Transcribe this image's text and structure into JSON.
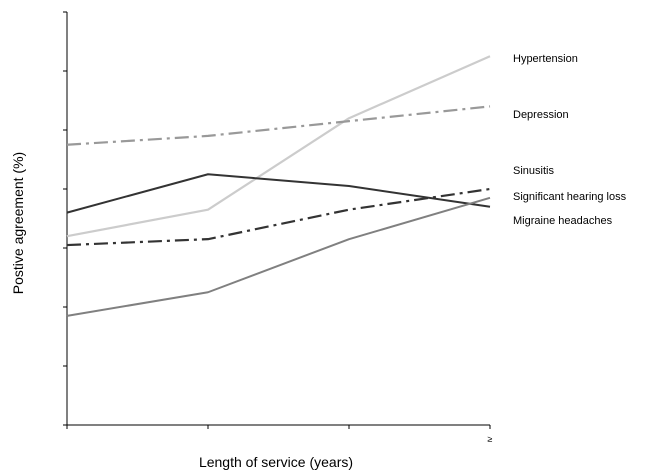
{
  "chart_data": {
    "type": "line",
    "title": "",
    "xlabel": "Length of service (years)",
    "ylabel": "Postive agreement (%)",
    "x": [
      0,
      1,
      2,
      3
    ],
    "x_tick_labels": [
      "",
      "",
      "",
      "≥"
    ],
    "ylim": [
      0,
      70
    ],
    "y_tick_count": 8,
    "grid": false,
    "legend": "right, inline labels",
    "series": [
      {
        "name": "Hypertension",
        "values": [
          32,
          36.5,
          52,
          62.5
        ],
        "color": "#cccccc",
        "dash": "solid",
        "width": 2.2
      },
      {
        "name": "Depression",
        "values": [
          47.5,
          49,
          51.5,
          54
        ],
        "color": "#999999",
        "dash": "dashdot",
        "width": 2.2
      },
      {
        "name": "Sinusitis",
        "values": [
          36,
          42.5,
          40.5,
          37
        ],
        "color": "#333333",
        "dash": "solid",
        "width": 2
      },
      {
        "name": "Significant hearing loss",
        "values": [
          30.5,
          31.5,
          36.5,
          40
        ],
        "color": "#333333",
        "dash": "dashdot",
        "width": 2.2
      },
      {
        "name": "Migraine headaches",
        "values": [
          18.5,
          22.5,
          31.5,
          38.5
        ],
        "color": "#808080",
        "dash": "solid",
        "width": 2
      }
    ],
    "labels": [
      {
        "key": "Hypertension",
        "text": "Hypertension"
      },
      {
        "key": "Depression",
        "text": "Depression"
      },
      {
        "key": "Sinusitis",
        "text": "Sinusitis"
      },
      {
        "key": "Significant hearing loss",
        "text": "Significant hearing loss"
      },
      {
        "key": "Migraine headaches",
        "text": "Migraine headaches"
      }
    ]
  }
}
